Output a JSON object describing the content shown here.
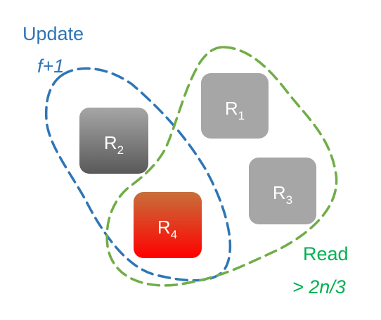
{
  "update_quorum": {
    "title": "Update",
    "condition": "f+1",
    "color": "#2E75B6"
  },
  "read_quorum": {
    "title": "Read",
    "condition": "> 2n/3",
    "color": "#70AD47",
    "text_color": "#00B050"
  },
  "replicas": [
    {
      "base": "R",
      "sub": "1",
      "state": "normal"
    },
    {
      "base": "R",
      "sub": "2",
      "state": "normal"
    },
    {
      "base": "R",
      "sub": "3",
      "state": "normal"
    },
    {
      "base": "R",
      "sub": "4",
      "state": "highlighted"
    }
  ],
  "colors": {
    "replica_gray_top": "#A6A6A6",
    "replica_gray_bottom": "#595959",
    "replica_light": "#A6A6A6",
    "replica_highlight_top": "#C55A11",
    "replica_highlight_bottom": "#FF0000"
  }
}
